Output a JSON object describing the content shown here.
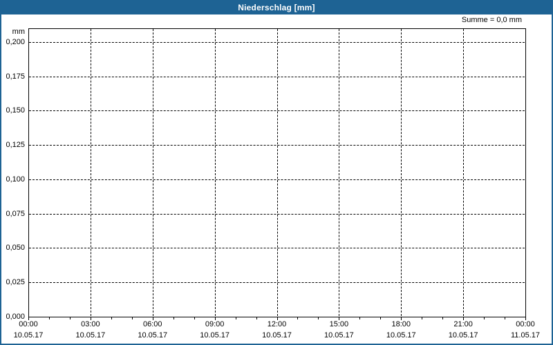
{
  "window": {
    "title": "Niederschlag [mm]"
  },
  "header": {
    "sum_label": "Summe = 0,0 mm"
  },
  "colors": {
    "titlebar_bg": "#1e6394",
    "titlebar_text": "#ffffff",
    "page_border": "#1e6394",
    "page_bg": "#ffffff",
    "axis": "#000000",
    "grid": "#000000",
    "label_text": "#000000"
  },
  "chart_data": {
    "type": "line",
    "title": "Niederschlag [mm]",
    "ylabel": "mm",
    "xlabel": "",
    "ylim": [
      0,
      0.21
    ],
    "grid": true,
    "grid_style": "dashed",
    "legend": "none",
    "annotation": "Summe = 0,0 mm",
    "y_ticks": [
      {
        "value": 0.2,
        "label": "0,200"
      },
      {
        "value": 0.175,
        "label": "0,175"
      },
      {
        "value": 0.15,
        "label": "0,150"
      },
      {
        "value": 0.125,
        "label": "0,125"
      },
      {
        "value": 0.1,
        "label": "0,100"
      },
      {
        "value": 0.075,
        "label": "0,075"
      },
      {
        "value": 0.05,
        "label": "0,050"
      },
      {
        "value": 0.025,
        "label": "0,025"
      },
      {
        "value": 0.0,
        "label": "0,000"
      }
    ],
    "x_ticks": [
      {
        "time": "00:00",
        "date": "10.05.17"
      },
      {
        "time": "03:00",
        "date": "10.05.17"
      },
      {
        "time": "06:00",
        "date": "10.05.17"
      },
      {
        "time": "09:00",
        "date": "10.05.17"
      },
      {
        "time": "12:00",
        "date": "10.05.17"
      },
      {
        "time": "15:00",
        "date": "10.05.17"
      },
      {
        "time": "18:00",
        "date": "10.05.17"
      },
      {
        "time": "21:00",
        "date": "10.05.17"
      },
      {
        "time": "00:00",
        "date": "11.05.17"
      }
    ],
    "x_minor_divisions_per_interval": 3,
    "series": []
  }
}
